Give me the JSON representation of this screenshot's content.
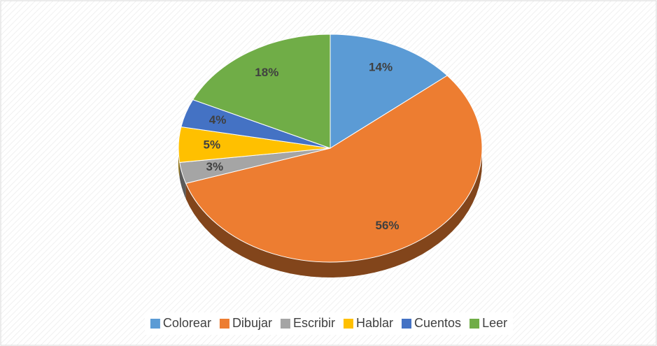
{
  "chart_data": {
    "type": "pie",
    "three_d": true,
    "categories": [
      "Colorear",
      "Dibujar",
      "Escribir",
      "Hablar",
      "Cuentos",
      "Leer"
    ],
    "values": [
      14,
      56,
      3,
      5,
      4,
      18
    ],
    "value_labels": [
      "14%",
      "56%",
      "3%",
      "5%",
      "4%",
      "18%"
    ],
    "colors": [
      "#5B9BD5",
      "#ED7D31",
      "#A5A5A5",
      "#FFC000",
      "#4472C4",
      "#70AD47"
    ],
    "legend": "bottom"
  }
}
